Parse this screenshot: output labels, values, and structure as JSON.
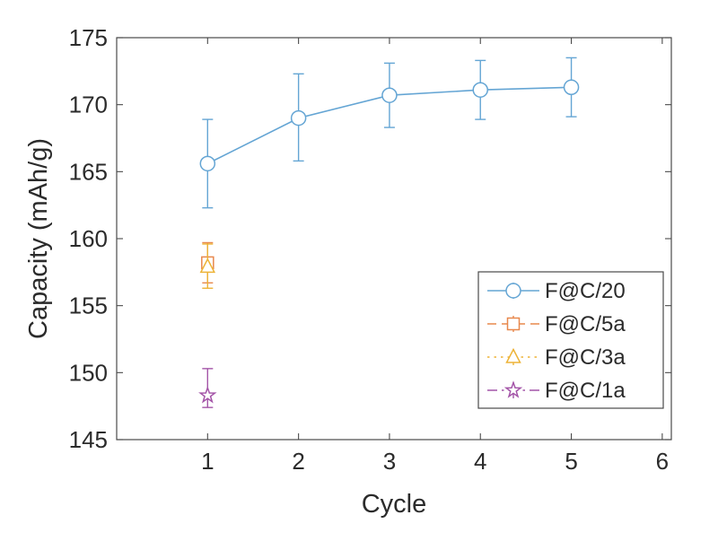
{
  "figure": {
    "background": "#ffffff",
    "axis_color": "#4a4a4a",
    "text_color": "#2b2b2b"
  },
  "chart_data": {
    "type": "line",
    "title": "",
    "xlabel": "Cycle",
    "ylabel": "Capacity (mAh/g)",
    "xlim": [
      0,
      6.1
    ],
    "ylim": [
      145,
      175
    ],
    "xticks": [
      1,
      2,
      3,
      4,
      5,
      6
    ],
    "yticks": [
      145,
      150,
      155,
      160,
      165,
      170,
      175
    ],
    "grid": false,
    "legend_position": "lower right",
    "series": [
      {
        "name": "F@C/20",
        "color": "#64a5d4",
        "line_style": "solid",
        "marker": "circle",
        "x": [
          1,
          2,
          3,
          4,
          5
        ],
        "y": [
          165.6,
          169.0,
          170.7,
          171.1,
          171.3
        ],
        "err_minus": [
          3.3,
          3.2,
          2.4,
          2.2,
          2.2
        ],
        "err_plus": [
          3.3,
          3.3,
          2.4,
          2.2,
          2.2
        ]
      },
      {
        "name": "F@C/5a",
        "color": "#e8884d",
        "line_style": "dashed",
        "marker": "square",
        "x": [
          1
        ],
        "y": [
          158.2
        ],
        "err_minus": [
          1.5
        ],
        "err_plus": [
          1.5
        ]
      },
      {
        "name": "F@C/3a",
        "color": "#edb337",
        "line_style": "dotted",
        "marker": "triangle",
        "x": [
          1
        ],
        "y": [
          157.9
        ],
        "err_minus": [
          1.6
        ],
        "err_plus": [
          1.7
        ]
      },
      {
        "name": "F@C/1a",
        "color": "#a455a8",
        "line_style": "dashdot",
        "marker": "star",
        "x": [
          1
        ],
        "y": [
          148.3
        ],
        "err_minus": [
          0.9
        ],
        "err_plus": [
          2.0
        ]
      }
    ]
  }
}
